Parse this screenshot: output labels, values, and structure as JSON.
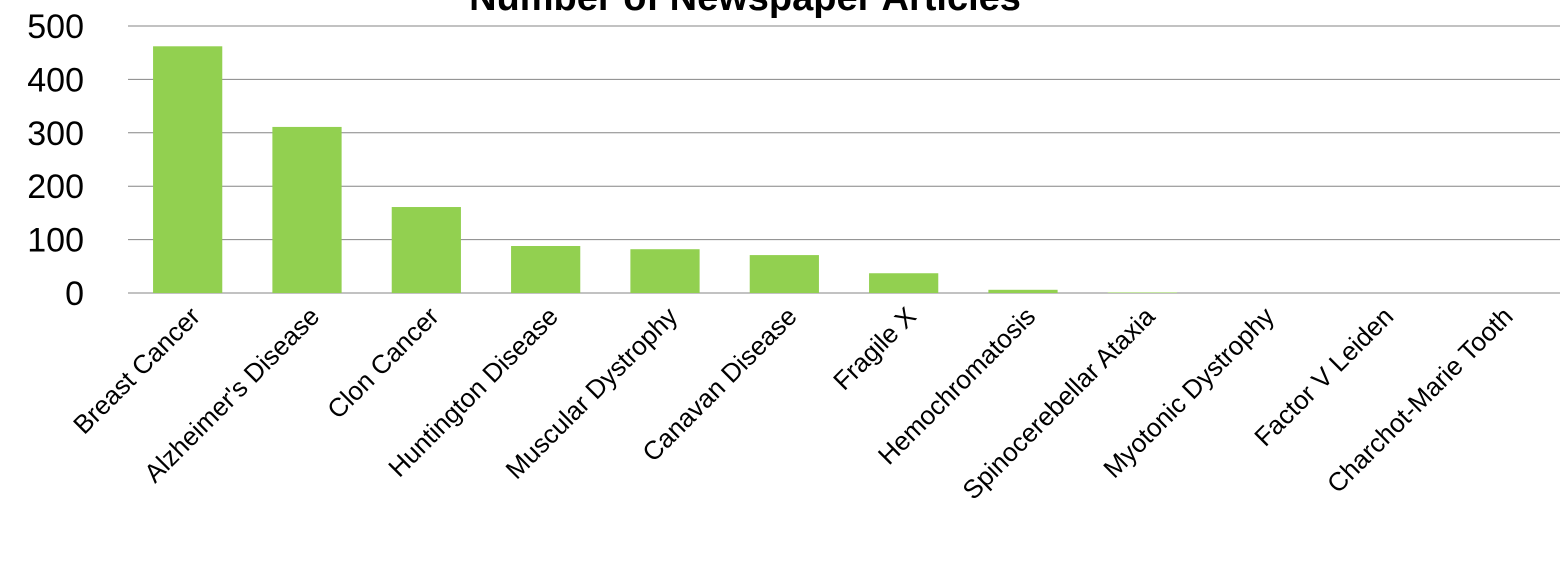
{
  "chart_data": {
    "type": "bar",
    "title": "Number of Newspaper Articles",
    "categories": [
      "Breast Cancer",
      "Alzheimer's Disease",
      "Clon Cancer",
      "Huntington Disease",
      "Muscular Dystrophy",
      "Canavan Disease",
      "Fragile X",
      "Hemochromatosis",
      "Spinocerebellar Ataxia",
      "Myotonic Dystrophy",
      "Factor V Leiden",
      "Charchot-Marie Tooth"
    ],
    "values": [
      462,
      311,
      161,
      88,
      82,
      71,
      37,
      6,
      1,
      0,
      0,
      0
    ],
    "color": "#92d050",
    "ylim": [
      0,
      500
    ],
    "yticks": [
      0,
      100,
      200,
      300,
      400,
      500
    ],
    "grid": true
  }
}
